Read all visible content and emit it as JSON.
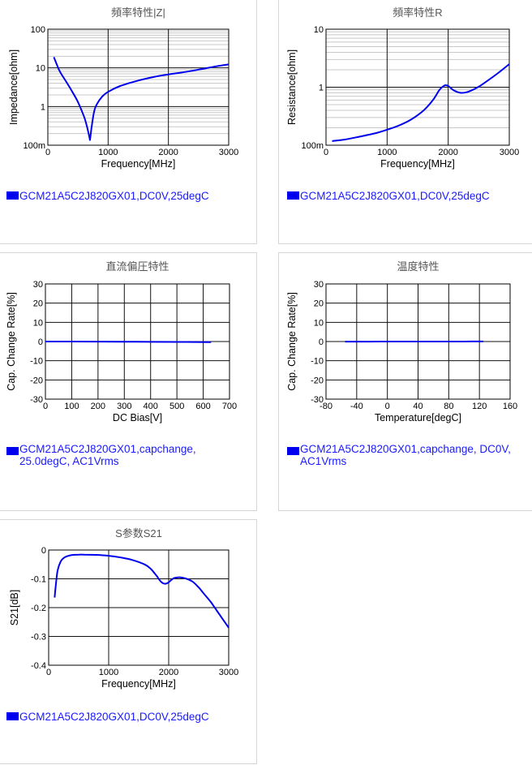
{
  "chart_data": [
    {
      "id": "impedance",
      "type": "line",
      "title": "頻率特性|Z|",
      "xlabel": "Frequency[MHz]",
      "ylabel": "Impedance[ohm]",
      "xlim": [
        0,
        3000
      ],
      "xscale": "linear",
      "ylim": [
        0.1,
        100
      ],
      "yscale": "log",
      "xticks": [
        0,
        1000,
        2000,
        3000
      ],
      "xtick_labels": [
        "0",
        "1000",
        "2000",
        "3000"
      ],
      "yticks": [
        0.1,
        1,
        10,
        100
      ],
      "ytick_labels": [
        "100m",
        "1",
        "10",
        "100"
      ],
      "grid": true,
      "legend": "GCM21A5C2J820GX01,DC0V,25degC",
      "series": [
        {
          "name": "GCM21A5C2J820GX01,DC0V,25degC",
          "color": "#0000ee",
          "x": [
            100,
            150,
            200,
            300,
            400,
            500,
            600,
            650,
            690,
            700,
            720,
            760,
            800,
            900,
            1000,
            1200,
            1500,
            1800,
            2000,
            2200,
            2500,
            2800,
            3000
          ],
          "y": [
            19,
            12,
            8,
            4.5,
            2.5,
            1.3,
            0.55,
            0.3,
            0.16,
            0.14,
            0.25,
            0.65,
            1.05,
            1.8,
            2.4,
            3.4,
            4.7,
            6.0,
            6.8,
            7.5,
            9.0,
            11.0,
            12.3
          ]
        }
      ]
    },
    {
      "id": "resistance",
      "type": "line",
      "title": "頻率特性R",
      "xlabel": "Frequency[MHz]",
      "ylabel": "Resistance[ohm]",
      "xlim": [
        0,
        3000
      ],
      "xscale": "linear",
      "ylim": [
        0.1,
        10
      ],
      "yscale": "log",
      "xticks": [
        0,
        1000,
        2000,
        3000
      ],
      "xtick_labels": [
        "0",
        "1000",
        "2000",
        "3000"
      ],
      "yticks": [
        0.1,
        1,
        10
      ],
      "ytick_labels": [
        "100m",
        "1",
        "10"
      ],
      "grid": true,
      "legend": "GCM21A5C2J820GX01,DC0V,25degC",
      "series": [
        {
          "name": "GCM21A5C2J820GX01,DC0V,25degC",
          "color": "#0000ee",
          "x": [
            100,
            300,
            500,
            800,
            1000,
            1200,
            1400,
            1600,
            1750,
            1850,
            1900,
            1950,
            2000,
            2100,
            2200,
            2300,
            2400,
            2500,
            2600,
            2800,
            3000
          ],
          "y": [
            0.118,
            0.125,
            0.137,
            0.16,
            0.185,
            0.22,
            0.28,
            0.4,
            0.6,
            0.88,
            1.0,
            1.08,
            1.05,
            0.87,
            0.8,
            0.82,
            0.9,
            1.02,
            1.2,
            1.7,
            2.5
          ]
        }
      ]
    },
    {
      "id": "dcbias",
      "type": "line",
      "title": "直流偏圧特性",
      "xlabel": "DC Bias[V]",
      "ylabel": "Cap. Change Rate[%]",
      "xlim": [
        0,
        700
      ],
      "xscale": "linear",
      "ylim": [
        -30,
        30
      ],
      "yscale": "linear",
      "xticks": [
        0,
        100,
        200,
        300,
        400,
        500,
        600,
        700
      ],
      "xtick_labels": [
        "0",
        "100",
        "200",
        "300",
        "400",
        "500",
        "600",
        "700"
      ],
      "yticks": [
        -30,
        -20,
        -10,
        0,
        10,
        20,
        30
      ],
      "ytick_labels": [
        "-30",
        "-20",
        "-10",
        "0",
        "10",
        "20",
        "30"
      ],
      "grid": true,
      "legend": "GCM21A5C2J820GX01,capchange,\n25.0degC, AC1Vrms",
      "series": [
        {
          "name": "GCM21A5C2J820GX01,capchange, 25.0degC, AC1Vrms",
          "color": "#0000ee",
          "x": [
            0,
            100,
            200,
            300,
            400,
            500,
            600,
            630
          ],
          "y": [
            0,
            0,
            -0.05,
            -0.1,
            -0.15,
            -0.2,
            -0.3,
            -0.3
          ]
        }
      ]
    },
    {
      "id": "temperature",
      "type": "line",
      "title": "温度特性",
      "xlabel": "Temperature[degC]",
      "ylabel": "Cap. Change Rate[%]",
      "xlim": [
        -80,
        160
      ],
      "xscale": "linear",
      "ylim": [
        -30,
        30
      ],
      "yscale": "linear",
      "xticks": [
        -80,
        -40,
        0,
        40,
        80,
        120,
        160
      ],
      "xtick_labels": [
        "-80",
        "-40",
        "0",
        "40",
        "80",
        "120",
        "160"
      ],
      "yticks": [
        -30,
        -20,
        -10,
        0,
        10,
        20,
        30
      ],
      "ytick_labels": [
        "-30",
        "-20",
        "-10",
        "0",
        "10",
        "20",
        "30"
      ],
      "grid": true,
      "legend": "GCM21A5C2J820GX01,capchange, DC0V,\nAC1Vrms",
      "series": [
        {
          "name": "GCM21A5C2J820GX01,capchange, DC0V, AC1Vrms",
          "color": "#0000ee",
          "x": [
            -55,
            -25,
            0,
            25,
            50,
            75,
            100,
            125
          ],
          "y": [
            -0.05,
            -0.03,
            -0.01,
            0,
            0.01,
            0.02,
            0.02,
            0.03
          ]
        }
      ]
    },
    {
      "id": "s21",
      "type": "line",
      "title": "S参数S21",
      "xlabel": "Frequency[MHz]",
      "ylabel": "S21[dB]",
      "xlim": [
        0,
        3000
      ],
      "xscale": "linear",
      "ylim": [
        -0.4,
        0
      ],
      "yscale": "linear",
      "xticks": [
        0,
        1000,
        2000,
        3000
      ],
      "xtick_labels": [
        "0",
        "1000",
        "2000",
        "3000"
      ],
      "yticks": [
        -0.4,
        -0.3,
        -0.2,
        -0.1,
        0
      ],
      "ytick_labels": [
        "-0.4",
        "-0.3",
        "-0.2",
        "-0.1",
        "0"
      ],
      "grid": true,
      "legend": "GCM21A5C2J820GX01,DC0V,25degC",
      "series": [
        {
          "name": "GCM21A5C2J820GX01,DC0V,25degC",
          "color": "#0000ee",
          "x": [
            100,
            120,
            150,
            200,
            250,
            300,
            400,
            500,
            600,
            800,
            1000,
            1200,
            1400,
            1600,
            1700,
            1800,
            1850,
            1900,
            1950,
            2000,
            2050,
            2100,
            2200,
            2300,
            2400,
            2500,
            2600,
            2700,
            2800,
            2900,
            3000
          ],
          "y": [
            -0.165,
            -0.12,
            -0.07,
            -0.04,
            -0.028,
            -0.022,
            -0.017,
            -0.016,
            -0.016,
            -0.017,
            -0.02,
            -0.026,
            -0.035,
            -0.05,
            -0.065,
            -0.09,
            -0.105,
            -0.115,
            -0.117,
            -0.112,
            -0.103,
            -0.097,
            -0.095,
            -0.1,
            -0.11,
            -0.13,
            -0.155,
            -0.18,
            -0.21,
            -0.24,
            -0.27
          ]
        }
      ]
    }
  ]
}
